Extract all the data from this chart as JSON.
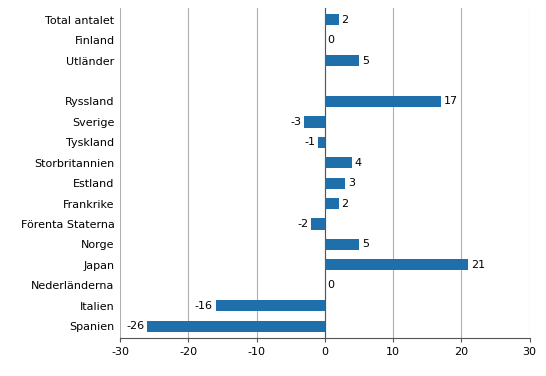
{
  "categories": [
    "Spanien",
    "Italien",
    "Nederländerna",
    "Japan",
    "Norge",
    "Förenta Staterna",
    "Frankrike",
    "Estland",
    "Storbritannien",
    "Tyskland",
    "Sverige",
    "Ryssland",
    "",
    "Utländer",
    "Finland",
    "Total antalet"
  ],
  "values": [
    -26,
    -16,
    0,
    21,
    5,
    -2,
    2,
    3,
    4,
    -1,
    -3,
    17,
    null,
    5,
    0,
    2
  ],
  "bar_color": "#1f6fab",
  "xlim": [
    -30,
    30
  ],
  "xticks": [
    -30,
    -20,
    -10,
    0,
    10,
    20,
    30
  ],
  "grid_color": "#b0b0b0",
  "background_color": "#ffffff",
  "label_fontsize": 8,
  "tick_fontsize": 8,
  "bar_height": 0.55
}
